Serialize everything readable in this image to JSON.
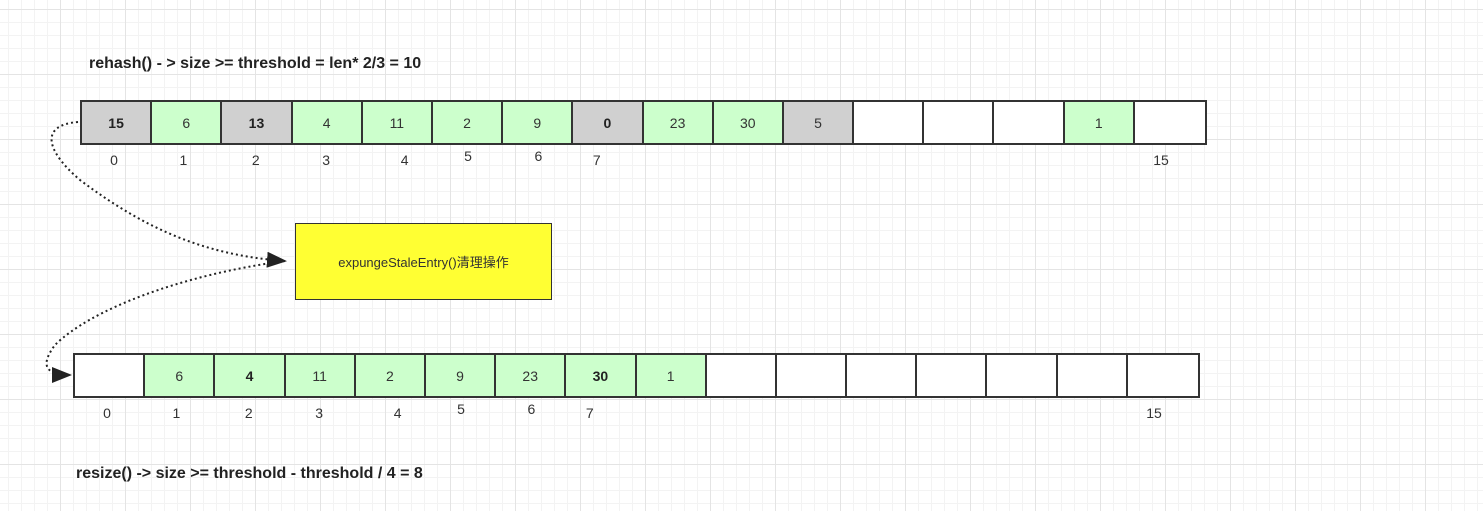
{
  "top": {
    "title": "rehash() - > size >= threshold = len* 2/3 = 10",
    "cells": [
      {
        "value": "15",
        "state": "gray",
        "bold": true
      },
      {
        "value": "6",
        "state": "green"
      },
      {
        "value": "13",
        "state": "gray",
        "bold": true
      },
      {
        "value": "4",
        "state": "green"
      },
      {
        "value": "11",
        "state": "green"
      },
      {
        "value": "2",
        "state": "green"
      },
      {
        "value": "9",
        "state": "green"
      },
      {
        "value": "0",
        "state": "gray",
        "bold": true
      },
      {
        "value": "23",
        "state": "green"
      },
      {
        "value": "30",
        "state": "green"
      },
      {
        "value": "5",
        "state": "gray"
      },
      {
        "value": "",
        "state": "white"
      },
      {
        "value": "",
        "state": "white"
      },
      {
        "value": "",
        "state": "white"
      },
      {
        "value": "1",
        "state": "green"
      },
      {
        "value": "",
        "state": "white"
      }
    ],
    "indices": [
      "0",
      "1",
      "2",
      "3",
      "4",
      "5",
      "6",
      "7",
      "15"
    ]
  },
  "process": {
    "label": "expungeStaleEntry()清理操作"
  },
  "bottom": {
    "title": "resize() -> size >= threshold - threshold / 4 = 8",
    "cells": [
      {
        "value": "",
        "state": "white"
      },
      {
        "value": "6",
        "state": "green"
      },
      {
        "value": "4",
        "state": "green",
        "bold": true
      },
      {
        "value": "11",
        "state": "green"
      },
      {
        "value": "2",
        "state": "green"
      },
      {
        "value": "9",
        "state": "green"
      },
      {
        "value": "23",
        "state": "green"
      },
      {
        "value": "30",
        "state": "green",
        "bold": true
      },
      {
        "value": "1",
        "state": "green"
      },
      {
        "value": "",
        "state": "white"
      },
      {
        "value": "",
        "state": "white"
      },
      {
        "value": "",
        "state": "white"
      },
      {
        "value": "",
        "state": "white"
      },
      {
        "value": "",
        "state": "white"
      },
      {
        "value": "",
        "state": "white"
      },
      {
        "value": "",
        "state": "white"
      }
    ],
    "indices": [
      "0",
      "1",
      "2",
      "3",
      "4",
      "5",
      "6",
      "7",
      "15"
    ]
  },
  "colors": {
    "live": "#ccffcc",
    "stale": "#d0d0d0",
    "empty": "#ffffff",
    "process": "#ffff33"
  }
}
